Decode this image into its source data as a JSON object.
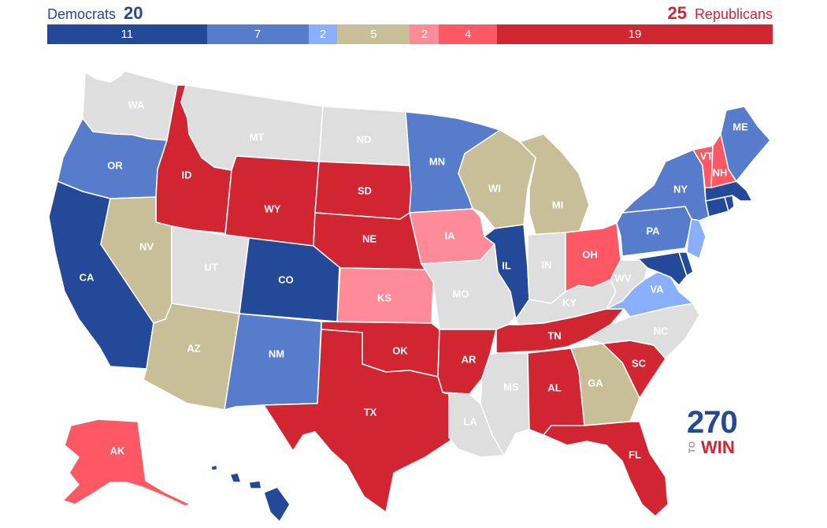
{
  "header": {
    "dem_label": "Democrats",
    "dem_total": "20",
    "rep_total": "25",
    "rep_label": "Republicans"
  },
  "bar": [
    {
      "id": "solid-dem",
      "value": 11,
      "label": "11",
      "color": "#244999"
    },
    {
      "id": "likely-dem",
      "value": 7,
      "label": "7",
      "color": "#577ccc"
    },
    {
      "id": "lean-dem",
      "value": 2,
      "label": "2",
      "color": "#8aafff"
    },
    {
      "id": "tossup",
      "value": 5,
      "label": "5",
      "color": "#c8bf99"
    },
    {
      "id": "lean-rep",
      "value": 2,
      "label": "2",
      "color": "#ff8b98"
    },
    {
      "id": "likely-rep",
      "value": 4,
      "label": "4",
      "color": "#ff5865"
    },
    {
      "id": "solid-rep",
      "value": 19,
      "label": "19",
      "color": "#d22532"
    }
  ],
  "colors": {
    "solid_dem": "#244999",
    "likely_dem": "#577ccc",
    "lean_dem": "#8aafff",
    "tossup": "#c8bf99",
    "lean_rep": "#ff8b98",
    "likely_rep": "#ff5865",
    "solid_rep": "#d22532",
    "no_race": "#dedede"
  },
  "states": {
    "WA": {
      "label": "WA",
      "rating": "no_race"
    },
    "OR": {
      "label": "OR",
      "rating": "likely_dem"
    },
    "CA": {
      "label": "CA",
      "rating": "solid_dem"
    },
    "ID": {
      "label": "ID",
      "rating": "solid_rep"
    },
    "NV": {
      "label": "NV",
      "rating": "tossup"
    },
    "MT": {
      "label": "MT",
      "rating": "no_race"
    },
    "WY": {
      "label": "WY",
      "rating": "solid_rep"
    },
    "UT": {
      "label": "UT",
      "rating": "no_race"
    },
    "AZ": {
      "label": "AZ",
      "rating": "tossup"
    },
    "CO": {
      "label": "CO",
      "rating": "solid_dem"
    },
    "NM": {
      "label": "NM",
      "rating": "likely_dem"
    },
    "ND": {
      "label": "ND",
      "rating": "no_race"
    },
    "SD": {
      "label": "SD",
      "rating": "solid_rep"
    },
    "NE": {
      "label": "NE",
      "rating": "solid_rep"
    },
    "KS": {
      "label": "KS",
      "rating": "lean_rep"
    },
    "OK": {
      "label": "OK",
      "rating": "solid_rep"
    },
    "TX": {
      "label": "TX",
      "rating": "solid_rep"
    },
    "MN": {
      "label": "MN",
      "rating": "likely_dem"
    },
    "IA": {
      "label": "IA",
      "rating": "lean_rep"
    },
    "MO": {
      "label": "MO",
      "rating": "no_race"
    },
    "AR": {
      "label": "AR",
      "rating": "solid_rep"
    },
    "LA": {
      "label": "LA",
      "rating": "no_race"
    },
    "WI": {
      "label": "WI",
      "rating": "tossup"
    },
    "IL": {
      "label": "IL",
      "rating": "solid_dem"
    },
    "MI": {
      "label": "MI",
      "rating": "tossup"
    },
    "IN": {
      "label": "IN",
      "rating": "no_race"
    },
    "OH": {
      "label": "OH",
      "rating": "likely_rep"
    },
    "KY": {
      "label": "KY",
      "rating": "no_race"
    },
    "TN": {
      "label": "TN",
      "rating": "solid_rep"
    },
    "MS": {
      "label": "MS",
      "rating": "no_race"
    },
    "AL": {
      "label": "AL",
      "rating": "solid_rep"
    },
    "GA": {
      "label": "GA",
      "rating": "tossup"
    },
    "FL": {
      "label": "FL",
      "rating": "solid_rep"
    },
    "SC": {
      "label": "SC",
      "rating": "solid_rep"
    },
    "NC": {
      "label": "NC",
      "rating": "no_race"
    },
    "VA": {
      "label": "VA",
      "rating": "lean_dem"
    },
    "WV": {
      "label": "WV",
      "rating": "no_race"
    },
    "PA": {
      "label": "PA",
      "rating": "likely_dem"
    },
    "NY": {
      "label": "NY",
      "rating": "likely_dem"
    },
    "NJ": {
      "label": "",
      "rating": "lean_dem"
    },
    "MD": {
      "label": "",
      "rating": "solid_dem"
    },
    "DE": {
      "label": "",
      "rating": "solid_dem"
    },
    "CT": {
      "label": "",
      "rating": "solid_dem"
    },
    "MA": {
      "label": "",
      "rating": "solid_dem"
    },
    "RI": {
      "label": "",
      "rating": "solid_dem"
    },
    "VT": {
      "label": "VT",
      "rating": "likely_rep"
    },
    "NH": {
      "label": "NH",
      "rating": "likely_rep"
    },
    "ME": {
      "label": "ME",
      "rating": "likely_dem"
    },
    "AK": {
      "label": "AK",
      "rating": "likely_rep"
    },
    "HI": {
      "label": "HI",
      "rating": "solid_dem"
    }
  },
  "logo": {
    "number": "270",
    "to": "TO",
    "win": "WIN"
  }
}
